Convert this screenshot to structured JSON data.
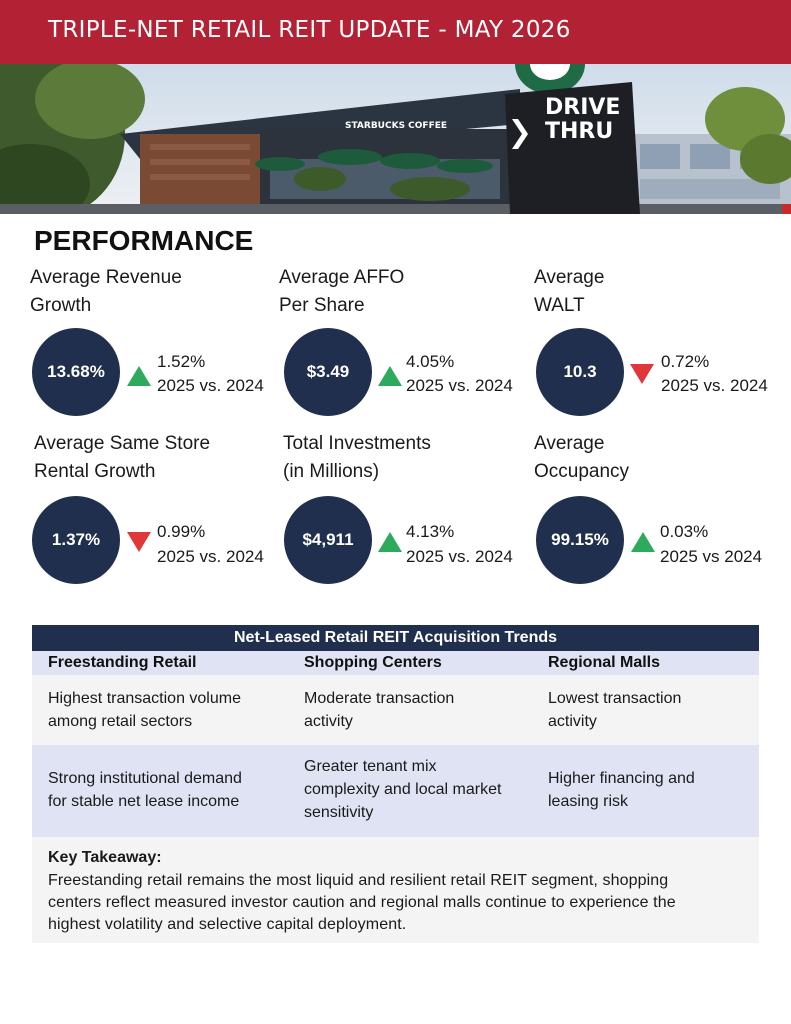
{
  "header": {
    "title": "TRIPLE-NET RETAIL REIT UPDATE - MAY 2026"
  },
  "photo": {
    "store_sign": "STARBUCKS COFFEE",
    "drive_line1": "DRIVE",
    "drive_line2": "THRU"
  },
  "performance": {
    "title": "PERFORMANCE",
    "metrics": [
      {
        "label_line1": "Average Revenue",
        "label_line2": "Growth",
        "value": "13.68%",
        "direction": "up",
        "change": "1.52%",
        "comparison": "2025 vs. 2024"
      },
      {
        "label_line1": "Average AFFO",
        "label_line2": "Per Share",
        "value": "$3.49",
        "direction": "up",
        "change": "4.05%",
        "comparison": "2025 vs. 2024"
      },
      {
        "label_line1": "Average",
        "label_line2": "WALT",
        "value": "10.3",
        "direction": "down",
        "change": "0.72%",
        "comparison": "2025 vs. 2024"
      },
      {
        "label_line1": "Average Same Store",
        "label_line2": "Rental Growth",
        "value": "1.37%",
        "direction": "down",
        "change": "0.99%",
        "comparison": "2025 vs. 2024"
      },
      {
        "label_line1": "Total Investments",
        "label_line2": "(in Millions)",
        "value": "$4,911",
        "direction": "up",
        "change": "4.13%",
        "comparison": "2025 vs. 2024"
      },
      {
        "label_line1": "Average",
        "label_line2": "Occupancy",
        "value": "99.15%",
        "direction": "up",
        "change": "0.03%",
        "comparison": "2025 vs 2024"
      }
    ]
  },
  "colors": {
    "brand_red": "#b22234",
    "navy": "#1f2f4d",
    "up_green": "#2eaa5c",
    "down_red": "#e0383a"
  },
  "trends": {
    "title": "Net-Leased Retail REIT Acquisition Trends",
    "columns": [
      "Freestanding Retail",
      "Shopping Centers",
      "Regional Malls"
    ],
    "rows": [
      {
        "c0": [
          "Highest transaction volume",
          "among retail sectors"
        ],
        "c1": [
          "Moderate transaction",
          "activity"
        ],
        "c2": [
          "Lowest transaction",
          "activity"
        ]
      },
      {
        "c0": [
          "Strong institutional demand",
          "for stable net lease income"
        ],
        "c1": [
          "Greater tenant mix",
          "complexity and local market",
          "sensitivity"
        ],
        "c2": [
          "Higher financing and",
          "leasing risk"
        ]
      }
    ],
    "takeaway_title": "Key Takeaway:",
    "takeaway_lines": [
      "Freestanding retail remains the most liquid and resilient retail REIT segment, shopping",
      "centers reflect measured investor caution and regional malls continue to experience the",
      "highest volatility and selective capital deployment."
    ]
  }
}
